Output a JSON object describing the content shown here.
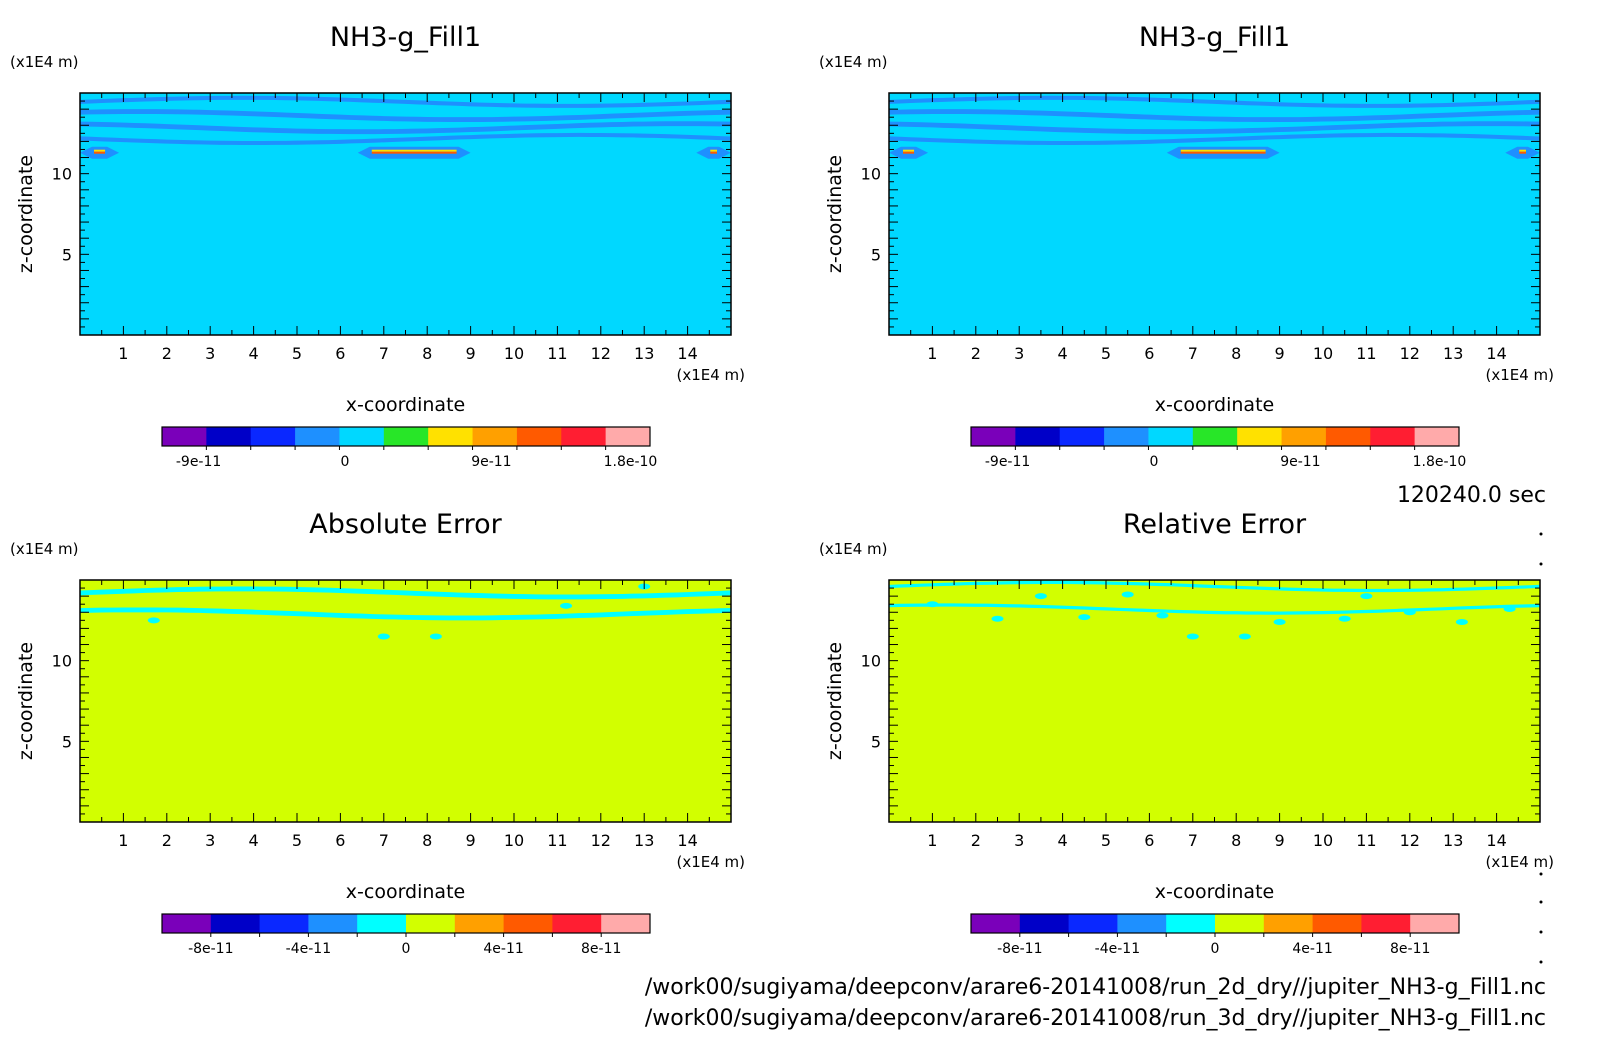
{
  "footer": {
    "time_label": "120240.0 sec",
    "file_paths": [
      "/work00/sugiyama/deepconv/arare6-20141008/run_2d_dry//jupiter_NH3-g_Fill1.nc",
      "/work00/sugiyama/deepconv/arare6-20141008/run_3d_dry//jupiter_NH3-g_Fill1.nc"
    ]
  },
  "chart_data": [
    {
      "type": "heatmap",
      "panel": "top-left",
      "title": "NH3-g_Fill1",
      "xlabel": "x-coordinate",
      "ylabel": "z-coordinate",
      "x_unit": "(x1E4 m)",
      "y_unit": "(x1E4 m)",
      "xlim": [
        0,
        15
      ],
      "ylim": [
        0,
        15
      ],
      "x_ticks": [
        1,
        2,
        3,
        4,
        5,
        6,
        7,
        8,
        9,
        10,
        11,
        12,
        13,
        14
      ],
      "y_ticks": [
        5,
        10
      ],
      "background_color": "#00d8ff",
      "bands": [
        {
          "z": 14.45,
          "thickness": 0.25,
          "color": "#1e90ff"
        },
        {
          "z": 13.6,
          "thickness": 0.3,
          "color": "#1e90ff"
        },
        {
          "z": 12.85,
          "thickness": 0.3,
          "color": "#1e90ff"
        },
        {
          "z": 12.15,
          "thickness": 0.25,
          "color": "#1e90ff"
        }
      ],
      "features": [
        {
          "kind": "lens",
          "x0": 6.4,
          "x1": 9.0,
          "z": 11.3,
          "color": "#1e90ff"
        },
        {
          "kind": "lens",
          "x0": 0.0,
          "x1": 0.9,
          "z": 11.3,
          "color": "#1e90ff"
        },
        {
          "kind": "lens",
          "x0": 14.2,
          "x1": 15.0,
          "z": 11.3,
          "color": "#1e90ff"
        }
      ],
      "colorbar": {
        "colors": [
          "#7a00ba",
          "#0000c8",
          "#0a28ff",
          "#1e90ff",
          "#00d8ff",
          "#28e628",
          "#ffe100",
          "#ffa000",
          "#ff5a00",
          "#ff1e32",
          "#ffaaaa"
        ],
        "labels": [
          "-9e-11",
          "0",
          "9e-11",
          "1.8e-10"
        ],
        "label_positions": [
          0.075,
          0.375,
          0.675,
          0.96
        ]
      }
    },
    {
      "type": "heatmap",
      "panel": "top-right",
      "title": "NH3-g_Fill1",
      "xlabel": "x-coordinate",
      "ylabel": "z-coordinate",
      "x_unit": "(x1E4 m)",
      "y_unit": "(x1E4 m)",
      "xlim": [
        0,
        15
      ],
      "ylim": [
        0,
        15
      ],
      "x_ticks": [
        1,
        2,
        3,
        4,
        5,
        6,
        7,
        8,
        9,
        10,
        11,
        12,
        13,
        14
      ],
      "y_ticks": [
        5,
        10
      ],
      "background_color": "#00d8ff",
      "bands": [
        {
          "z": 14.45,
          "thickness": 0.25,
          "color": "#1e90ff"
        },
        {
          "z": 13.6,
          "thickness": 0.3,
          "color": "#1e90ff"
        },
        {
          "z": 12.85,
          "thickness": 0.3,
          "color": "#1e90ff"
        },
        {
          "z": 12.15,
          "thickness": 0.25,
          "color": "#1e90ff"
        }
      ],
      "features": [
        {
          "kind": "lens",
          "x0": 6.4,
          "x1": 9.0,
          "z": 11.3,
          "color": "#1e90ff"
        },
        {
          "kind": "lens",
          "x0": 0.0,
          "x1": 0.9,
          "z": 11.3,
          "color": "#1e90ff"
        },
        {
          "kind": "lens",
          "x0": 14.2,
          "x1": 15.0,
          "z": 11.3,
          "color": "#1e90ff"
        }
      ],
      "colorbar": {
        "colors": [
          "#7a00ba",
          "#0000c8",
          "#0a28ff",
          "#1e90ff",
          "#00d8ff",
          "#28e628",
          "#ffe100",
          "#ffa000",
          "#ff5a00",
          "#ff1e32",
          "#ffaaaa"
        ],
        "labels": [
          "-9e-11",
          "0",
          "9e-11",
          "1.8e-10"
        ],
        "label_positions": [
          0.075,
          0.375,
          0.675,
          0.96
        ]
      }
    },
    {
      "type": "heatmap",
      "panel": "bottom-left",
      "title": "Absolute Error",
      "xlabel": "x-coordinate",
      "ylabel": "z-coordinate",
      "x_unit": "(x1E4 m)",
      "y_unit": "(x1E4 m)",
      "xlim": [
        0,
        15
      ],
      "ylim": [
        0,
        15
      ],
      "x_ticks": [
        1,
        2,
        3,
        4,
        5,
        6,
        7,
        8,
        9,
        10,
        11,
        12,
        13,
        14
      ],
      "y_ticks": [
        5,
        10
      ],
      "background_color": "#d2ff00",
      "bands": [
        {
          "z": 14.2,
          "thickness": 0.3,
          "color": "#00ffff"
        },
        {
          "z": 12.9,
          "thickness": 0.3,
          "color": "#00ffff"
        }
      ],
      "features": [
        {
          "kind": "dot",
          "x": 7.0,
          "z": 11.5,
          "color": "#00ffff"
        },
        {
          "kind": "dot",
          "x": 8.2,
          "z": 11.5,
          "color": "#00ffff"
        },
        {
          "kind": "dot",
          "x": 1.7,
          "z": 12.5,
          "color": "#00ffff"
        },
        {
          "kind": "dot",
          "x": 11.2,
          "z": 13.4,
          "color": "#00ffff"
        },
        {
          "kind": "dot",
          "x": 13.0,
          "z": 14.6,
          "color": "#00ffff"
        }
      ],
      "colorbar": {
        "colors": [
          "#7a00ba",
          "#0000c8",
          "#0a28ff",
          "#1e90ff",
          "#00ffff",
          "#d2ff00",
          "#ffa000",
          "#ff5a00",
          "#ff1e32",
          "#ffaaaa"
        ],
        "labels": [
          "-8e-11",
          "-4e-11",
          "0",
          "4e-11",
          "8e-11"
        ],
        "label_positions": [
          0.1,
          0.3,
          0.5,
          0.7,
          0.9
        ]
      }
    },
    {
      "type": "heatmap",
      "panel": "bottom-right",
      "title": "Relative Error",
      "xlabel": "x-coordinate",
      "ylabel": "z-coordinate",
      "x_unit": "(x1E4 m)",
      "y_unit": "(x1E4 m)",
      "xlim": [
        0,
        15
      ],
      "ylim": [
        0,
        15
      ],
      "x_ticks": [
        1,
        2,
        3,
        4,
        5,
        6,
        7,
        8,
        9,
        10,
        11,
        12,
        13,
        14
      ],
      "y_ticks": [
        5,
        10
      ],
      "background_color": "#d2ff00",
      "bands": [
        {
          "z": 14.6,
          "thickness": 0.2,
          "color": "#00ffff"
        },
        {
          "z": 13.2,
          "thickness": 0.2,
          "color": "#00ffff"
        }
      ],
      "features": [
        {
          "kind": "dot",
          "x": 1.0,
          "z": 13.5,
          "color": "#00ffff"
        },
        {
          "kind": "dot",
          "x": 2.5,
          "z": 12.6,
          "color": "#00ffff"
        },
        {
          "kind": "dot",
          "x": 4.5,
          "z": 12.7,
          "color": "#00ffff"
        },
        {
          "kind": "dot",
          "x": 6.3,
          "z": 12.8,
          "color": "#00ffff"
        },
        {
          "kind": "dot",
          "x": 7.0,
          "z": 11.5,
          "color": "#00ffff"
        },
        {
          "kind": "dot",
          "x": 8.2,
          "z": 11.5,
          "color": "#00ffff"
        },
        {
          "kind": "dot",
          "x": 9.0,
          "z": 12.4,
          "color": "#00ffff"
        },
        {
          "kind": "dot",
          "x": 10.5,
          "z": 12.6,
          "color": "#00ffff"
        },
        {
          "kind": "dot",
          "x": 12.0,
          "z": 13.0,
          "color": "#00ffff"
        },
        {
          "kind": "dot",
          "x": 13.2,
          "z": 12.4,
          "color": "#00ffff"
        },
        {
          "kind": "dot",
          "x": 14.3,
          "z": 13.2,
          "color": "#00ffff"
        },
        {
          "kind": "dot",
          "x": 3.5,
          "z": 14.0,
          "color": "#00ffff"
        },
        {
          "kind": "dot",
          "x": 5.5,
          "z": 14.1,
          "color": "#00ffff"
        },
        {
          "kind": "dot",
          "x": 11.0,
          "z": 14.0,
          "color": "#00ffff"
        }
      ],
      "colorbar": {
        "colors": [
          "#7a00ba",
          "#0000c8",
          "#0a28ff",
          "#1e90ff",
          "#00ffff",
          "#d2ff00",
          "#ffa000",
          "#ff5a00",
          "#ff1e32",
          "#ffaaaa"
        ],
        "labels": [
          "-8e-11",
          "-4e-11",
          "0",
          "4e-11",
          "8e-11"
        ],
        "label_positions": [
          0.1,
          0.3,
          0.5,
          0.7,
          0.9
        ]
      }
    }
  ]
}
